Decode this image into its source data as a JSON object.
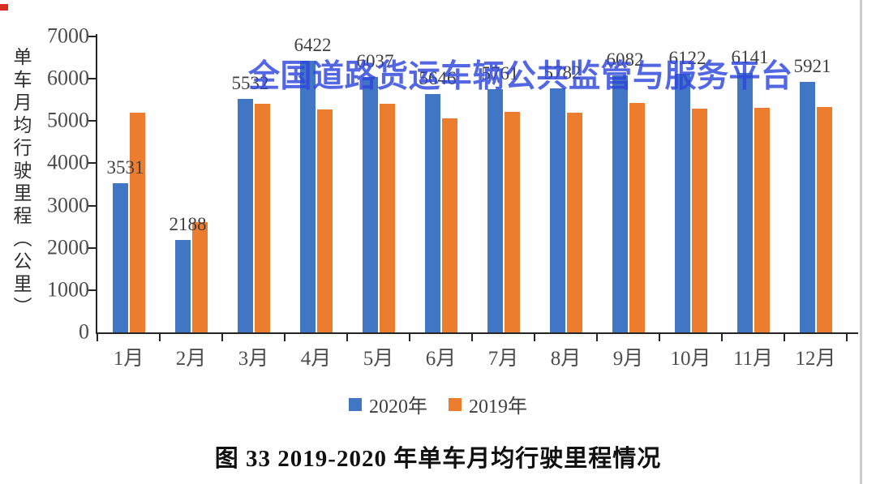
{
  "watermark": {
    "text": "全国道路货运车辆公共监管与服务平台",
    "color": "#2F46DD"
  },
  "caption": "图 33  2019-2020 年单车月均行驶里程情况",
  "chart_data": {
    "type": "bar",
    "title": "",
    "xlabel": "",
    "ylabel": "单车月均行驶里程（公里）",
    "categories": [
      "1月",
      "2月",
      "3月",
      "4月",
      "5月",
      "6月",
      "7月",
      "8月",
      "9月",
      "10月",
      "11月",
      "12月"
    ],
    "series": [
      {
        "name": "2020年",
        "color": "#4176C5",
        "values": [
          3531,
          2188,
          5532,
          6422,
          6037,
          5646,
          5761,
          5782,
          6082,
          6122,
          6141,
          5921
        ],
        "data_labels_shown": true
      },
      {
        "name": "2019年",
        "color": "#EC7D2F",
        "values": [
          5200,
          2610,
          5410,
          5270,
          5410,
          5060,
          5220,
          5200,
          5430,
          5300,
          5320,
          5330
        ],
        "data_labels_shown": false
      }
    ],
    "ylim": [
      0,
      7000
    ],
    "yticks": [
      0,
      1000,
      2000,
      3000,
      4000,
      5000,
      6000,
      7000
    ],
    "grid": false,
    "legend_position": "bottom"
  }
}
